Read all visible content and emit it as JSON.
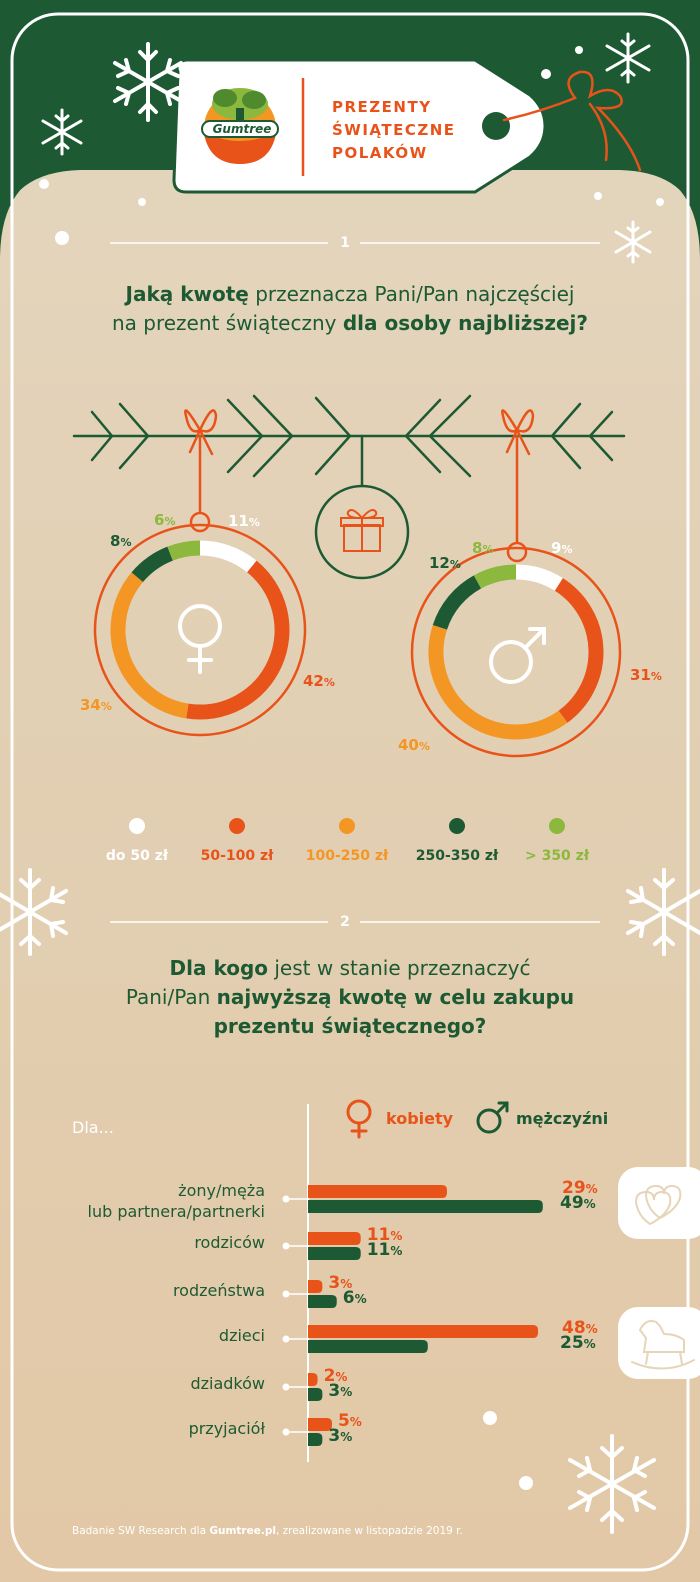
{
  "header": {
    "logo_text": "Gumtree",
    "title_lines": [
      "PREZENTY",
      "ŚWIĄTECZNE",
      "POLAKÓW"
    ]
  },
  "section1": {
    "number": "1",
    "question_parts": [
      {
        "text": "Jaką kwotę",
        "bold": true
      },
      {
        "text": " przeznacza Pani/Pan najczęściej",
        "bold": false
      },
      {
        "text": "\n",
        "bold": false
      },
      {
        "text": "na prezent świąteczny ",
        "bold": false
      },
      {
        "text": "dla osoby najbliższej?",
        "bold": true
      }
    ]
  },
  "chart_data": [
    {
      "type": "pie",
      "variant": "donut",
      "name": "kobiety",
      "categories": [
        "do 50 zł",
        "50-100 zł",
        "100-250 zł",
        "250-350 zł",
        "> 350 zł"
      ],
      "values": [
        11,
        42,
        34,
        8,
        6
      ],
      "labels": [
        "11%",
        "42%",
        "34%",
        "8%",
        "6%"
      ],
      "colors": [
        "#ffffff",
        "#e8531a",
        "#f39623",
        "#1d5a33",
        "#8cb83e"
      ]
    },
    {
      "type": "pie",
      "variant": "donut",
      "name": "mężczyźni",
      "categories": [
        "do 50 zł",
        "50-100 zł",
        "100-250 zł",
        "250-350 zł",
        "> 350 zł"
      ],
      "values": [
        9,
        31,
        40,
        12,
        8
      ],
      "labels": [
        "9%",
        "31%",
        "40%",
        "12%",
        "8%"
      ],
      "colors": [
        "#ffffff",
        "#e8531a",
        "#f39623",
        "#1d5a33",
        "#8cb83e"
      ]
    },
    {
      "type": "bar",
      "orientation": "horizontal",
      "axis_prefix": "Dla...",
      "categories": [
        "żony/męża\nlub partnera/partnerki",
        "rodziców",
        "rodzeństwa",
        "dzieci",
        "dziadków",
        "przyjaciół"
      ],
      "series": [
        {
          "name": "kobiety",
          "color": "#e8531a",
          "values": [
            29,
            11,
            3,
            48,
            2,
            5
          ]
        },
        {
          "name": "mężczyźni",
          "color": "#1d5a33",
          "values": [
            49,
            11,
            6,
            25,
            3,
            3
          ]
        }
      ],
      "xlim": [
        0,
        60
      ]
    }
  ],
  "legend": [
    {
      "label": "do 50 zł",
      "color": "#ffffff"
    },
    {
      "label": "50-100 zł",
      "color": "#e8531a"
    },
    {
      "label": "100-250 zł",
      "color": "#f39623"
    },
    {
      "label": "250-350 zł",
      "color": "#1d5a33"
    },
    {
      "label": "> 350 zł",
      "color": "#8cb83e"
    }
  ],
  "section2": {
    "number": "2",
    "question_parts": [
      {
        "text": "Dla kogo",
        "bold": true
      },
      {
        "text": " jest w stanie przeznaczyć",
        "bold": false
      },
      {
        "text": "\n",
        "bold": false
      },
      {
        "text": "Pani/Pan ",
        "bold": false
      },
      {
        "text": "najwyższą kwotę w celu zakupu",
        "bold": true
      },
      {
        "text": "\n",
        "bold": false
      },
      {
        "text": "prezentu świątecznego?",
        "bold": true
      }
    ]
  },
  "gender_legend": {
    "female": "kobiety",
    "male": "mężczyźni"
  },
  "footer": {
    "prefix": "Badanie SW Research dla ",
    "brand": "Gumtree.pl",
    "suffix": ", zrealizowane w listopadzie 2019 r."
  },
  "colors": {
    "green": "#1d5a33",
    "orange": "#e8531a",
    "amber": "#f39623",
    "lime": "#8cb83e",
    "beige": "#e6d5b8"
  }
}
